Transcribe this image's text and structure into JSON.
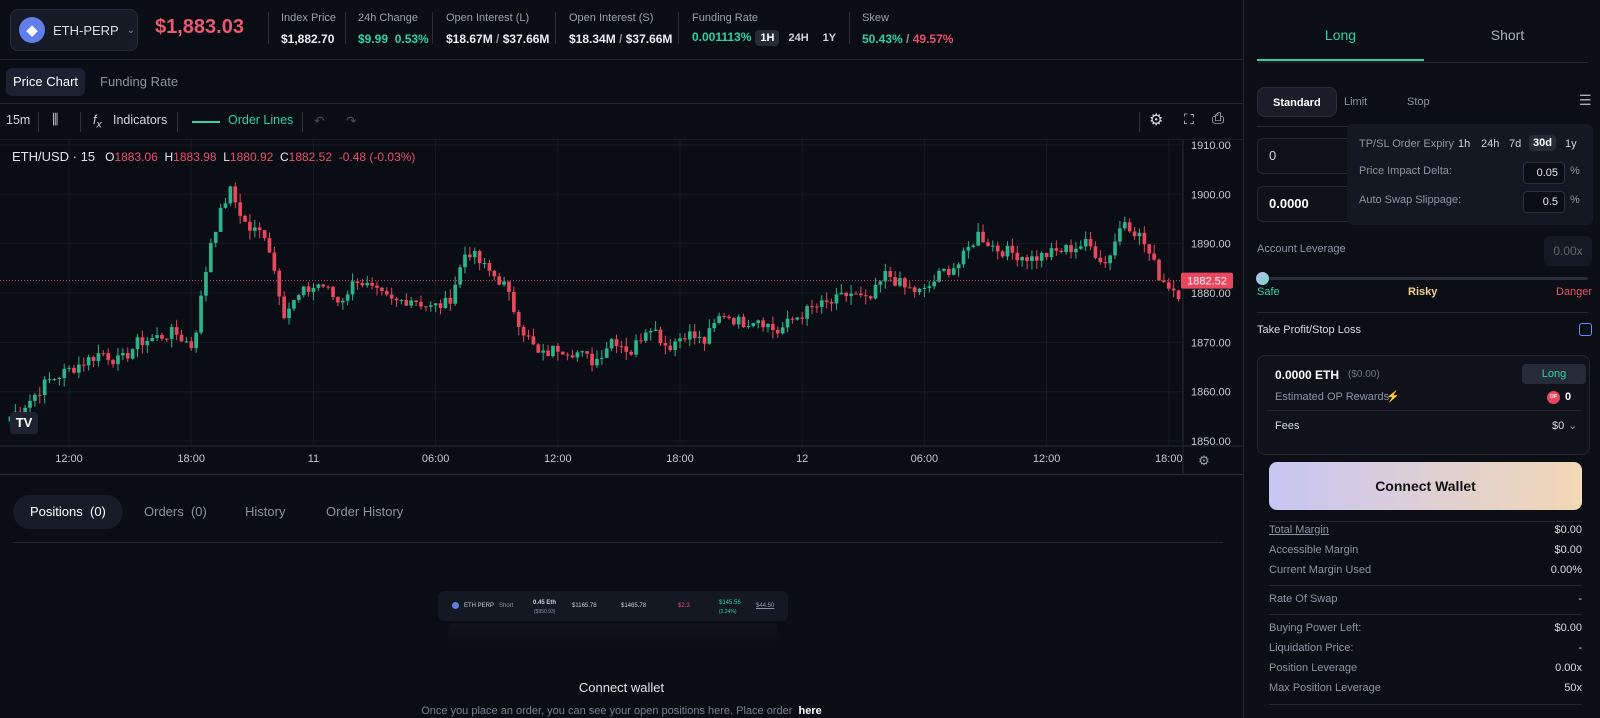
{
  "header": {
    "market": "ETH-PERP",
    "price": "$1,883.03",
    "stats": {
      "index_price": {
        "label": "Index Price",
        "value": "$1,882.70"
      },
      "change_24h": {
        "label": "24h Change",
        "value": "$9.99",
        "pct": "0.53%"
      },
      "oi_long": {
        "label": "Open Interest (L)",
        "value": "$18.67M",
        "total": "$37.66M"
      },
      "oi_short": {
        "label": "Open Interest (S)",
        "value": "$18.34M",
        "total": "$37.66M"
      },
      "funding": {
        "label": "Funding Rate",
        "value": "0.001113%",
        "periods": [
          "1H",
          "24H",
          "1Y"
        ],
        "active_period": "1H"
      },
      "skew": {
        "label": "Skew",
        "long": "50.43%",
        "short": "49.57%"
      }
    }
  },
  "chart_tabs": {
    "price_chart": "Price Chart",
    "funding_rate": "Funding Rate"
  },
  "toolbar": {
    "interval": "15m",
    "indicators": "Indicators",
    "order_lines": "Order Lines"
  },
  "ohlc": {
    "symbol": "ETH/USD · 15",
    "o_label": "O",
    "o": "1883.06",
    "h_label": "H",
    "h": "1883.98",
    "l_label": "L",
    "l": "1880.92",
    "c_label": "C",
    "c": "1882.52",
    "change": "-0.48 (-0.03%)"
  },
  "chart_data": {
    "type": "candlestick",
    "title": "ETH/USD · 15",
    "y_ticks": [
      1850,
      1860,
      1870,
      1880,
      1890,
      1900,
      1910
    ],
    "ylim": [
      1849,
      1911
    ],
    "x_ticks": [
      "12:00",
      "18:00",
      "11",
      "06:00",
      "12:00",
      "18:00",
      "12",
      "06:00",
      "12:00",
      "18:00"
    ],
    "last_price": "1882.52",
    "anchors": [
      1855,
      1858,
      1862,
      1864,
      1866,
      1868,
      1866,
      1870,
      1871,
      1872,
      1869,
      1891,
      1901,
      1893,
      1892,
      1876,
      1880,
      1882,
      1878,
      1883,
      1880,
      1878,
      1879,
      1877,
      1878,
      1889,
      1885,
      1882,
      1873,
      1867,
      1869,
      1868,
      1866,
      1871,
      1868,
      1874,
      1869,
      1872,
      1870,
      1876,
      1874,
      1875,
      1872,
      1875,
      1877,
      1878,
      1880,
      1878,
      1884,
      1881,
      1880,
      1884,
      1886,
      1892,
      1889,
      1888,
      1887,
      1888,
      1889,
      1890,
      1886,
      1895,
      1891,
      1883,
      1880
    ]
  },
  "positions_tabs": {
    "positions": "Positions",
    "positions_count": "(0)",
    "orders": "Orders",
    "orders_count": "(0)",
    "history": "History",
    "order_history": "Order History"
  },
  "empty_state": {
    "title": "Connect wallet",
    "text": "Once you place an order, you can see your open positions here. Place order",
    "link": "here"
  },
  "preview": {
    "market": "ETH PERP",
    "side": "Short",
    "size": "0.45 Eth",
    "size_usd": "($950.93)",
    "entry": "$1165.78",
    "mark": "$1465.78",
    "pnl": "$2.3",
    "liq": "$145.56",
    "liq_pct": "(2.24%)",
    "margin": "$44.50"
  },
  "side": {
    "long": "Long",
    "short": "Short",
    "order_types": [
      "Standard",
      "Limit",
      "Stop"
    ],
    "amount_input": "0",
    "usd_input": "0.0000",
    "popup": {
      "expiry_label": "TP/SL Order Expiry",
      "expiry_options": [
        "1h",
        "24h",
        "7d",
        "30d",
        "1y"
      ],
      "expiry_active": "30d",
      "impact_label": "Price Impact Delta:",
      "impact_value": "0.05",
      "slippage_label": "Auto Swap Slippage:",
      "slippage_value": "0.5",
      "pct": "%"
    },
    "leverage_label": "Account Leverage",
    "leverage_value": "0.00x",
    "risk": {
      "safe": "Safe",
      "risky": "Risky",
      "danger": "Danger"
    },
    "tpsl": "Take Profit/Stop Loss",
    "card": {
      "amount": "0.0000 ETH",
      "usd": "($0.00)",
      "badge": "Long",
      "rewards": "Estimated OP Rewards",
      "op": "OP",
      "rewards_value": "0",
      "fees": "Fees",
      "fees_value": "$0"
    },
    "connect": "Connect Wallet",
    "details": [
      {
        "label": "Total Margin",
        "value": "$0.00"
      },
      {
        "label": "Accessible Margin",
        "value": "$0.00"
      },
      {
        "label": "Current Margin Used",
        "value": "0.00%"
      },
      {
        "label": "Rate Of Swap",
        "value": "-"
      },
      {
        "label": "Buying Power Left:",
        "value": "$0.00"
      },
      {
        "label": "Liquidation Price:",
        "value": "-"
      },
      {
        "label": "Position Leverage",
        "value": "0.00x"
      },
      {
        "label": "Max Position Leverage",
        "value": "50x"
      }
    ]
  },
  "colors": {
    "up": "#2bb48a",
    "down": "#e8475e",
    "accent": "#2fd3a5",
    "price_label_bg": "#e8475e"
  }
}
